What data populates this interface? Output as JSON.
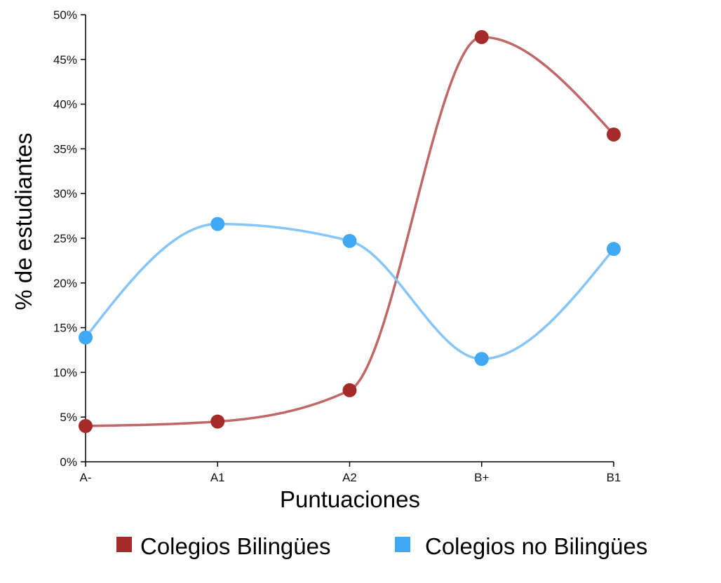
{
  "chart_data": {
    "type": "line",
    "categories": [
      "A-",
      "A1",
      "A2",
      "B+",
      "B1"
    ],
    "series": [
      {
        "name": "Colegios Bilingües",
        "color": "#a52a2a",
        "line_color": "#c06868",
        "values": [
          4.0,
          4.5,
          8.0,
          47.5,
          36.6
        ]
      },
      {
        "name": "Colegios no Bilingües",
        "color": "#3fa9f5",
        "line_color": "#86c5f5",
        "values": [
          13.9,
          26.6,
          24.7,
          11.5,
          23.8
        ]
      }
    ],
    "xlabel": "Puntuaciones",
    "ylabel": "% de estudiantes",
    "ylim": [
      0,
      50
    ],
    "yticks": [
      0,
      5,
      10,
      15,
      20,
      25,
      30,
      35,
      40,
      45,
      50
    ],
    "ytick_suffix": "%",
    "grid": false,
    "legend_position": "bottom"
  }
}
